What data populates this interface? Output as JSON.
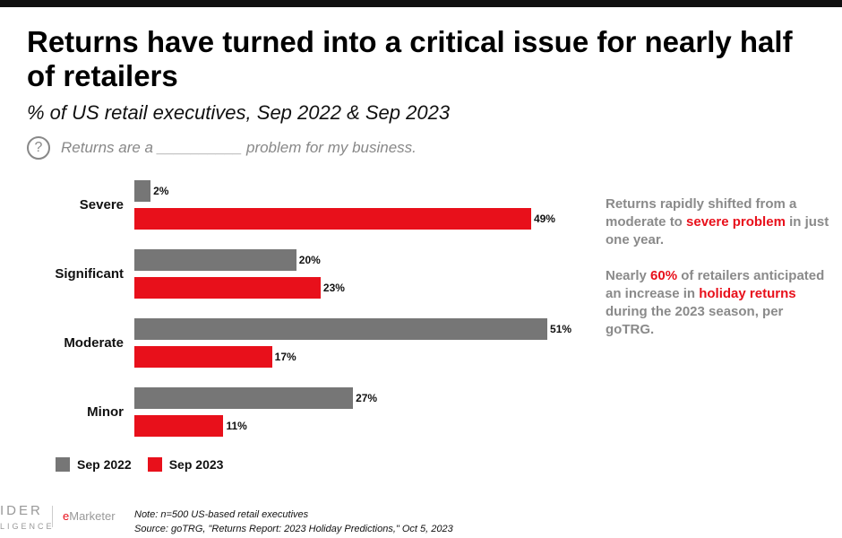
{
  "title": "Returns have turned into a critical issue for nearly half of retailers",
  "subtitle": "% of US retail executives, Sep 2022 & Sep 2023",
  "question": {
    "icon": "question-circle-icon",
    "text": "Returns are a __________ problem for my business."
  },
  "chart_data": {
    "type": "bar",
    "orientation": "horizontal",
    "categories": [
      "Severe",
      "Significant",
      "Moderate",
      "Minor"
    ],
    "series": [
      {
        "name": "Sep 2022",
        "color": "#767676",
        "values": [
          2,
          20,
          51,
          27
        ],
        "labels": [
          "2%",
          "20%",
          "51%",
          "27%"
        ]
      },
      {
        "name": "Sep 2023",
        "color": "#e8101b",
        "values": [
          49,
          23,
          17,
          11
        ],
        "labels": [
          "49%",
          "23%",
          "17%",
          "11%"
        ]
      }
    ],
    "legend": "bottom-left",
    "grid": false,
    "xlim": [
      0,
      51
    ]
  },
  "sidebar": {
    "p1": [
      "Returns rapidly shifted from a moderate to ",
      "severe problem",
      " in just one year."
    ],
    "p2": [
      "Nearly ",
      "60%",
      " of retailers anticipated an increase in ",
      "holiday returns",
      " during the 2023 season, per goTRG."
    ]
  },
  "footer": {
    "note": "Note: n=500 US-based retail executives",
    "source": "Source: goTRG, \"Returns Report: 2023 Holiday Predictions,\" Oct 5, 2023"
  },
  "logos": {
    "insider_top": "IDER",
    "insider_bottom": "LIGENCE",
    "emarketer_e": "e",
    "emarketer_rest": "Marketer"
  }
}
